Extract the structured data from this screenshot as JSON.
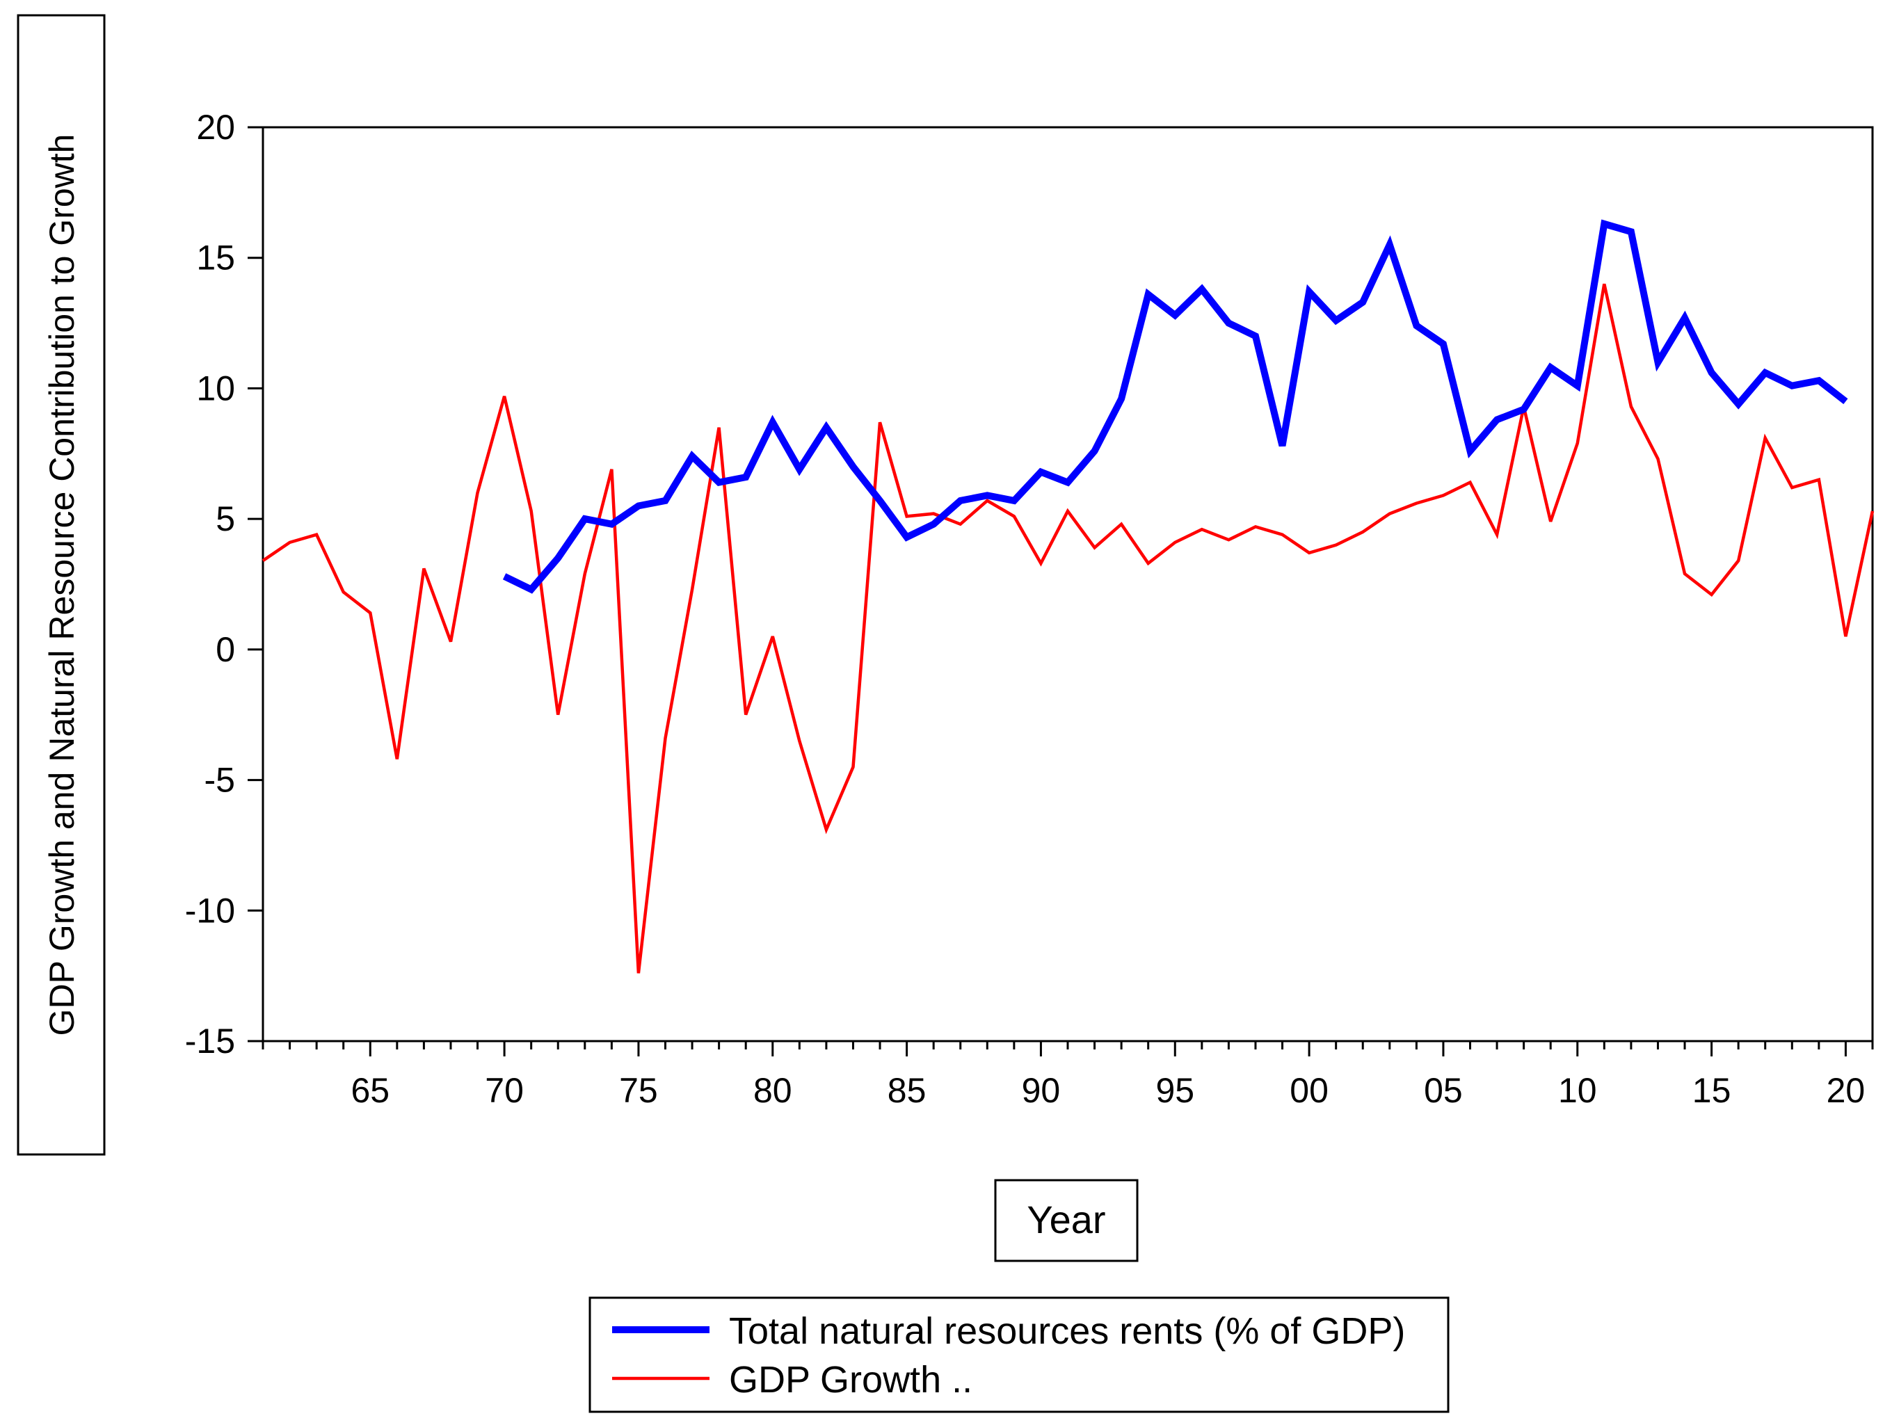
{
  "chart_data": {
    "type": "line",
    "title": "",
    "xlabel": "Year",
    "ylabel": "GDP Growth and Natural Resource Contribution to Growth",
    "xlim": [
      1961,
      2021
    ],
    "ylim": [
      -15,
      20
    ],
    "y_ticks": [
      20,
      15,
      10,
      5,
      0,
      -5,
      -10,
      -15
    ],
    "y_tick_labels": [
      "20",
      "15",
      "10",
      "5",
      "0",
      "-5",
      "-10",
      "-15"
    ],
    "x_ticks": [
      1965,
      1970,
      1975,
      1980,
      1985,
      1990,
      1995,
      2000,
      2005,
      2010,
      2015,
      2020
    ],
    "x_tick_labels": [
      "65",
      "70",
      "75",
      "80",
      "85",
      "90",
      "95",
      "00",
      "05",
      "10",
      "15",
      "20"
    ],
    "grid": false,
    "legend_position": "bottom",
    "series": [
      {
        "name": "Total natural resources rents (% of GDP)",
        "color": "#0000ff",
        "line_weight": "thick",
        "x": [
          1970,
          1971,
          1972,
          1973,
          1974,
          1975,
          1976,
          1977,
          1978,
          1979,
          1980,
          1981,
          1982,
          1983,
          1984,
          1985,
          1986,
          1987,
          1988,
          1989,
          1990,
          1991,
          1992,
          1993,
          1994,
          1995,
          1996,
          1997,
          1998,
          1999,
          2000,
          2001,
          2002,
          2003,
          2004,
          2005,
          2006,
          2007,
          2008,
          2009,
          2010,
          2011,
          2012,
          2013,
          2014,
          2015,
          2016,
          2017,
          2018,
          2019,
          2020
        ],
        "values": [
          2.8,
          2.3,
          3.5,
          5.0,
          4.8,
          5.5,
          5.7,
          7.4,
          6.4,
          6.6,
          8.7,
          6.9,
          8.5,
          7.0,
          5.7,
          4.3,
          4.8,
          5.7,
          5.9,
          5.7,
          6.8,
          6.4,
          7.6,
          9.6,
          13.6,
          12.8,
          13.8,
          12.5,
          12.0,
          7.8,
          13.7,
          12.6,
          13.3,
          15.5,
          12.4,
          11.7,
          7.6,
          8.8,
          9.2,
          10.8,
          10.1,
          16.3,
          16.0,
          11.0,
          12.7,
          10.6,
          9.4,
          10.6,
          10.1,
          10.3,
          9.5
        ]
      },
      {
        "name": "GDP Growth ..",
        "color": "#ff0000",
        "line_weight": "thin",
        "x": [
          1961,
          1962,
          1963,
          1964,
          1965,
          1966,
          1967,
          1968,
          1969,
          1970,
          1971,
          1972,
          1973,
          1974,
          1975,
          1976,
          1977,
          1978,
          1979,
          1980,
          1981,
          1982,
          1983,
          1984,
          1985,
          1986,
          1987,
          1988,
          1989,
          1990,
          1991,
          1992,
          1993,
          1994,
          1995,
          1996,
          1997,
          1998,
          1999,
          2000,
          2001,
          2002,
          2003,
          2004,
          2005,
          2006,
          2007,
          2008,
          2009,
          2010,
          2011,
          2012,
          2013,
          2014,
          2015,
          2016,
          2017,
          2018,
          2019,
          2020,
          2021
        ],
        "values": [
          3.4,
          4.1,
          4.4,
          2.2,
          1.4,
          -4.2,
          3.1,
          0.3,
          6.0,
          9.7,
          5.3,
          -2.5,
          2.9,
          6.9,
          -12.4,
          -3.4,
          2.3,
          8.5,
          -2.5,
          0.5,
          -3.5,
          -6.9,
          -4.5,
          8.7,
          5.1,
          5.2,
          4.8,
          5.7,
          5.1,
          3.3,
          5.3,
          3.9,
          4.8,
          3.3,
          4.1,
          4.6,
          4.2,
          4.7,
          4.4,
          3.7,
          4.0,
          4.5,
          5.2,
          5.6,
          5.9,
          6.4,
          4.4,
          9.3,
          4.9,
          7.9,
          14.0,
          9.3,
          7.3,
          2.9,
          2.1,
          3.4,
          8.1,
          6.2,
          6.5,
          0.5,
          5.3
        ]
      }
    ]
  }
}
